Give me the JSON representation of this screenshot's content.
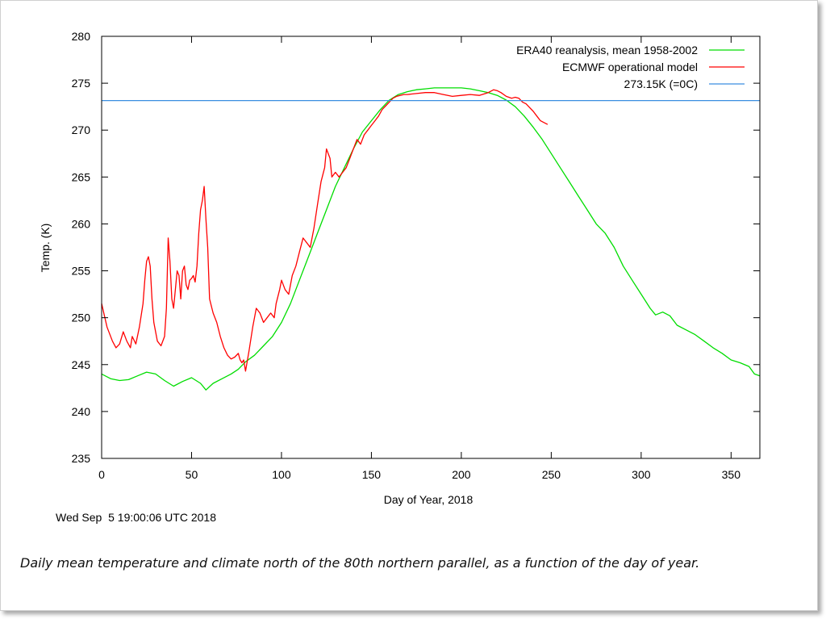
{
  "timestamp": "Wed Sep  5 19:00:06 UTC 2018",
  "caption": "Daily mean temperature and climate north of the 80th northern parallel, as a function of the day of year.",
  "chart_data": {
    "type": "line",
    "title": "",
    "xlabel": "Day of Year, 2018",
    "ylabel": "Temp. (K)",
    "xlim": [
      0,
      366
    ],
    "ylim": [
      235,
      280
    ],
    "xticks": [
      0,
      50,
      100,
      150,
      200,
      250,
      300,
      350
    ],
    "yticks": [
      235,
      240,
      245,
      250,
      255,
      260,
      265,
      270,
      275,
      280
    ],
    "grid": false,
    "legend_position": "top-right",
    "series": [
      {
        "name": "ERA40 reanalysis, mean 1958-2002",
        "color": "#00dd00",
        "points": [
          [
            0,
            244.0
          ],
          [
            5,
            243.5
          ],
          [
            10,
            243.3
          ],
          [
            15,
            243.4
          ],
          [
            20,
            243.8
          ],
          [
            25,
            244.2
          ],
          [
            30,
            244.0
          ],
          [
            35,
            243.3
          ],
          [
            40,
            242.7
          ],
          [
            45,
            243.2
          ],
          [
            50,
            243.6
          ],
          [
            55,
            243.0
          ],
          [
            58,
            242.3
          ],
          [
            62,
            243.0
          ],
          [
            67,
            243.5
          ],
          [
            72,
            244.0
          ],
          [
            76,
            244.5
          ],
          [
            80,
            245.3
          ],
          [
            85,
            246.0
          ],
          [
            90,
            247.0
          ],
          [
            95,
            248.0
          ],
          [
            100,
            249.5
          ],
          [
            105,
            251.5
          ],
          [
            110,
            254.0
          ],
          [
            115,
            256.5
          ],
          [
            120,
            259.0
          ],
          [
            125,
            261.5
          ],
          [
            130,
            264.0
          ],
          [
            135,
            266.0
          ],
          [
            140,
            268.0
          ],
          [
            145,
            269.8
          ],
          [
            150,
            271.0
          ],
          [
            155,
            272.2
          ],
          [
            160,
            273.2
          ],
          [
            165,
            273.8
          ],
          [
            170,
            274.1
          ],
          [
            175,
            274.3
          ],
          [
            180,
            274.4
          ],
          [
            185,
            274.5
          ],
          [
            190,
            274.5
          ],
          [
            195,
            274.5
          ],
          [
            200,
            274.5
          ],
          [
            205,
            274.4
          ],
          [
            210,
            274.2
          ],
          [
            215,
            274.0
          ],
          [
            220,
            273.7
          ],
          [
            225,
            273.2
          ],
          [
            230,
            272.5
          ],
          [
            235,
            271.5
          ],
          [
            240,
            270.3
          ],
          [
            245,
            269.0
          ],
          [
            250,
            267.5
          ],
          [
            255,
            266.0
          ],
          [
            260,
            264.5
          ],
          [
            265,
            263.0
          ],
          [
            270,
            261.5
          ],
          [
            275,
            260.0
          ],
          [
            280,
            259.0
          ],
          [
            285,
            257.5
          ],
          [
            290,
            255.5
          ],
          [
            295,
            254.0
          ],
          [
            300,
            252.5
          ],
          [
            305,
            251.0
          ],
          [
            308,
            250.3
          ],
          [
            312,
            250.6
          ],
          [
            316,
            250.2
          ],
          [
            320,
            249.2
          ],
          [
            325,
            248.7
          ],
          [
            330,
            248.2
          ],
          [
            335,
            247.5
          ],
          [
            340,
            246.8
          ],
          [
            345,
            246.2
          ],
          [
            350,
            245.5
          ],
          [
            355,
            245.2
          ],
          [
            360,
            244.8
          ],
          [
            363,
            244.0
          ],
          [
            366,
            243.8
          ]
        ]
      },
      {
        "name": "ECMWF operational model",
        "color": "#ff0000",
        "points": [
          [
            0,
            251.5
          ],
          [
            3,
            249.0
          ],
          [
            6,
            247.5
          ],
          [
            8,
            246.8
          ],
          [
            10,
            247.2
          ],
          [
            12,
            248.5
          ],
          [
            14,
            247.5
          ],
          [
            16,
            246.8
          ],
          [
            17,
            248.0
          ],
          [
            19,
            247.2
          ],
          [
            21,
            249.0
          ],
          [
            23,
            251.5
          ],
          [
            24,
            254.0
          ],
          [
            25,
            256.0
          ],
          [
            26,
            256.5
          ],
          [
            27,
            255.5
          ],
          [
            28,
            252.0
          ],
          [
            29,
            249.5
          ],
          [
            31,
            247.5
          ],
          [
            33,
            247.0
          ],
          [
            35,
            248.0
          ],
          [
            36,
            251.0
          ],
          [
            37,
            258.5
          ],
          [
            38,
            256.0
          ],
          [
            39,
            252.0
          ],
          [
            40,
            251.0
          ],
          [
            41,
            253.0
          ],
          [
            42,
            255.0
          ],
          [
            43,
            254.5
          ],
          [
            44,
            252.0
          ],
          [
            45,
            255.0
          ],
          [
            46,
            255.5
          ],
          [
            47,
            253.5
          ],
          [
            48,
            253.0
          ],
          [
            49,
            254.0
          ],
          [
            50,
            254.2
          ],
          [
            51,
            254.5
          ],
          [
            52,
            253.8
          ],
          [
            53,
            255.5
          ],
          [
            54,
            259.0
          ],
          [
            55,
            261.5
          ],
          [
            56,
            262.5
          ],
          [
            57,
            264.0
          ],
          [
            58,
            260.5
          ],
          [
            59,
            257.5
          ],
          [
            60,
            252.0
          ],
          [
            62,
            250.5
          ],
          [
            64,
            249.5
          ],
          [
            66,
            248.0
          ],
          [
            68,
            246.8
          ],
          [
            70,
            246.0
          ],
          [
            72,
            245.6
          ],
          [
            74,
            245.8
          ],
          [
            76,
            246.2
          ],
          [
            77,
            245.5
          ],
          [
            78,
            245.2
          ],
          [
            79,
            245.5
          ],
          [
            80,
            244.3
          ],
          [
            82,
            246.5
          ],
          [
            84,
            249.0
          ],
          [
            86,
            251.0
          ],
          [
            88,
            250.5
          ],
          [
            90,
            249.5
          ],
          [
            92,
            250.0
          ],
          [
            94,
            250.5
          ],
          [
            96,
            250.0
          ],
          [
            97,
            251.5
          ],
          [
            99,
            253.0
          ],
          [
            100,
            254.0
          ],
          [
            102,
            253.0
          ],
          [
            104,
            252.5
          ],
          [
            106,
            254.5
          ],
          [
            108,
            255.5
          ],
          [
            110,
            257.0
          ],
          [
            112,
            258.5
          ],
          [
            114,
            258.0
          ],
          [
            116,
            257.5
          ],
          [
            118,
            259.5
          ],
          [
            120,
            262.0
          ],
          [
            122,
            264.5
          ],
          [
            124,
            266.0
          ],
          [
            125,
            268.0
          ],
          [
            127,
            267.0
          ],
          [
            128,
            265.0
          ],
          [
            130,
            265.5
          ],
          [
            132,
            265.0
          ],
          [
            134,
            265.5
          ],
          [
            136,
            266.0
          ],
          [
            138,
            267.0
          ],
          [
            140,
            268.0
          ],
          [
            142,
            269.0
          ],
          [
            144,
            268.5
          ],
          [
            146,
            269.5
          ],
          [
            148,
            270.0
          ],
          [
            150,
            270.5
          ],
          [
            152,
            271.0
          ],
          [
            154,
            271.5
          ],
          [
            156,
            272.2
          ],
          [
            158,
            272.6
          ],
          [
            160,
            273.0
          ],
          [
            162,
            273.4
          ],
          [
            164,
            273.6
          ],
          [
            166,
            273.7
          ],
          [
            168,
            273.8
          ],
          [
            170,
            273.8
          ],
          [
            175,
            273.9
          ],
          [
            180,
            274.0
          ],
          [
            185,
            274.0
          ],
          [
            190,
            273.8
          ],
          [
            195,
            273.6
          ],
          [
            200,
            273.7
          ],
          [
            205,
            273.8
          ],
          [
            210,
            273.7
          ],
          [
            215,
            274.0
          ],
          [
            218,
            274.3
          ],
          [
            220,
            274.2
          ],
          [
            222,
            274.0
          ],
          [
            225,
            273.6
          ],
          [
            228,
            273.4
          ],
          [
            230,
            273.5
          ],
          [
            232,
            273.4
          ],
          [
            234,
            273.0
          ],
          [
            236,
            272.8
          ],
          [
            238,
            272.4
          ],
          [
            240,
            272.0
          ],
          [
            242,
            271.5
          ],
          [
            244,
            271.0
          ],
          [
            246,
            270.8
          ],
          [
            248,
            270.6
          ]
        ]
      },
      {
        "name": "273.15K (=0C)",
        "color": "#3a8ee0",
        "points": [
          [
            0,
            273.15
          ],
          [
            366,
            273.15
          ]
        ]
      }
    ]
  }
}
